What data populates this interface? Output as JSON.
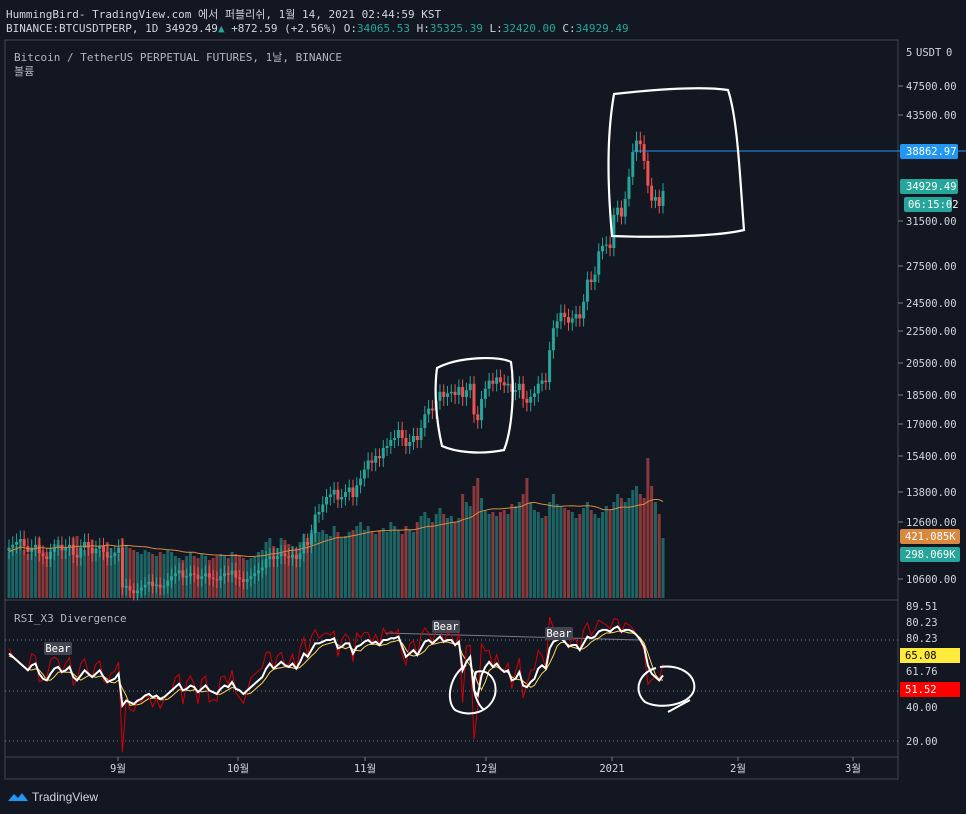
{
  "header": {
    "line1": "HummingBird- TradingView.com 에서 퍼블리쉬, 1월 14, 2021 02:44:59 KST",
    "symbol": "BINANCE:BTCUSDTPERP, 1D",
    "last": "34929.49",
    "arrow": "▲",
    "change": "+872.59 (+2.56%)",
    "o_label": "O:",
    "o": "34065.53",
    "h_label": "H:",
    "h": "35325.39",
    "l_label": "L:",
    "l": "32420.00",
    "c_label": "C:",
    "c": "34929.49"
  },
  "legend": {
    "title": "Bitcoin / TetherUS PERPETUAL FUTURES, 1날, BINANCE",
    "volume": "볼륨",
    "rsi": "RSI_X3 Divergence"
  },
  "price_axis": {
    "currency": "USDT",
    "currency_count": "5",
    "tail": "0",
    "ticks": [
      "47500.00",
      "43500.00",
      "31500.00",
      "27500.00",
      "24500.00",
      "22500.00",
      "20500.00",
      "18500.00",
      "17000.00",
      "15400.00",
      "13800.00",
      "12600.00",
      "10600.00"
    ],
    "tag_hline": "38862.97",
    "tag_last": "34929.49",
    "tag_timer": "06:15:02",
    "tag_vol_ma": "421.085K",
    "tag_vol": "298.069K"
  },
  "rsi_axis": {
    "ticks": [
      "89.51",
      "80.23",
      "80.23",
      "61.76",
      "40.00",
      "20.00"
    ],
    "tag_yellow": "65.08",
    "tag_red": "51.52"
  },
  "time_axis": {
    "labels": [
      "9월",
      "10월",
      "11월",
      "12월",
      "2021",
      "2월",
      "3월"
    ]
  },
  "rsi_labels": [
    "Bear",
    "Bear",
    "Bear"
  ],
  "footer": {
    "brand": "TradingView"
  },
  "colors": {
    "bg": "#131722",
    "up": "#26a69a",
    "down": "#ef5350",
    "hline": "#2196f3",
    "vol_ma": "#d9893f",
    "rsi": "#ffffff",
    "rsi_fast": "#d50000",
    "rsi_slow": "#ffd54f"
  },
  "chart_data": {
    "type": "candlestick",
    "interval": "1D",
    "symbol": "BINANCE:BTCUSDTPERP",
    "last_bar": {
      "open": 34065.53,
      "high": 35325.39,
      "low": 32420.0,
      "close": 34929.49,
      "change": 872.59,
      "change_pct": 2.56
    },
    "horizontal_line": 38862.97,
    "volume_last": "298.069K",
    "volume_ma": "421.085K",
    "close_series": [
      11700,
      11800,
      11900,
      12000,
      11750,
      11550,
      11700,
      11800,
      11500,
      11400,
      11300,
      11550,
      11700,
      11800,
      11600,
      11700,
      11800,
      11450,
      11350,
      11700,
      11900,
      11700,
      11500,
      11650,
      11750,
      11550,
      11350,
      11400,
      11500,
      11700,
      10300,
      10350,
      10200,
      10100,
      10200,
      10300,
      10400,
      10500,
      10350,
      10400,
      10300,
      10350,
      10550,
      10700,
      10800,
      10900,
      10650,
      10700,
      10800,
      10750,
      10600,
      10700,
      10800,
      10650,
      10600,
      10550,
      10700,
      10800,
      10750,
      10900,
      10650,
      10600,
      10500,
      10600,
      10700,
      10800,
      10900,
      11000,
      11300,
      11400,
      11300,
      11400,
      11500,
      11400,
      11350,
      11450,
      11300,
      11500,
      11900,
      11800,
      12200,
      12900,
      13000,
      13300,
      13600,
      13700,
      13900,
      13500,
      13600,
      13800,
      14000,
      13600,
      14100,
      14400,
      14800,
      15200,
      15100,
      15400,
      15300,
      15800,
      15900,
      16200,
      16300,
      16700,
      16300,
      15900,
      16100,
      16400,
      16200,
      16800,
      17500,
      17800,
      17700,
      18200,
      18700,
      18400,
      18600,
      18700,
      18500,
      19000,
      18400,
      18800,
      19200,
      17500,
      17200,
      18300,
      18900,
      19400,
      19200,
      19600,
      19300,
      19100,
      19200,
      18700,
      18800,
      19200,
      18300,
      18100,
      18400,
      18600,
      19200,
      19400,
      19300,
      21300,
      22700,
      23200,
      23800,
      23500,
      23100,
      23400,
      23700,
      23400,
      24600,
      26400,
      26200,
      26800,
      28800,
      29300,
      29400,
      29100,
      32200,
      33000,
      32000,
      34000,
      36500,
      39300,
      40600,
      40200,
      38300,
      35500,
      33800,
      34200,
      33200,
      34900
    ],
    "volume_series_k": [
      230,
      250,
      260,
      280,
      240,
      220,
      230,
      260,
      300,
      240,
      230,
      250,
      270,
      290,
      260,
      240,
      250,
      300,
      310,
      260,
      240,
      260,
      290,
      250,
      240,
      260,
      280,
      250,
      230,
      220,
      300,
      260,
      250,
      240,
      230,
      220,
      240,
      230,
      220,
      210,
      230,
      220,
      240,
      230,
      210,
      200,
      190,
      210,
      230,
      210,
      200,
      220,
      210,
      190,
      200,
      210,
      220,
      210,
      200,
      230,
      220,
      210,
      200,
      190,
      200,
      210,
      230,
      240,
      280,
      300,
      260,
      250,
      300,
      290,
      270,
      260,
      250,
      280,
      320,
      300,
      340,
      360,
      330,
      340,
      320,
      310,
      360,
      330,
      300,
      310,
      330,
      340,
      360,
      380,
      340,
      360,
      330,
      320,
      340,
      350,
      330,
      380,
      360,
      340,
      320,
      360,
      340,
      330,
      380,
      410,
      430,
      400,
      380,
      420,
      450,
      420,
      400,
      410,
      380,
      400,
      520,
      480,
      460,
      560,
      600,
      500,
      440,
      420,
      430,
      410,
      430,
      440,
      420,
      470,
      460,
      480,
      520,
      600,
      480,
      440,
      430,
      400,
      410,
      480,
      520,
      470,
      460,
      450,
      440,
      430,
      400,
      420,
      450,
      480,
      440,
      420,
      400,
      430,
      460,
      440,
      480,
      520,
      500,
      480,
      500,
      540,
      560,
      520,
      500,
      700,
      560,
      480,
      420,
      300
    ],
    "rsi_series": [
      72,
      70,
      68,
      66,
      64,
      62,
      65,
      66,
      60,
      57,
      56,
      60,
      63,
      64,
      61,
      62,
      64,
      58,
      56,
      59,
      62,
      60,
      58,
      60,
      62,
      58,
      55,
      56,
      57,
      60,
      41,
      44,
      43,
      42,
      44,
      45,
      47,
      48,
      46,
      47,
      45,
      46,
      48,
      50,
      52,
      54,
      50,
      51,
      53,
      52,
      49,
      51,
      53,
      50,
      49,
      48,
      51,
      53,
      52,
      55,
      51,
      50,
      48,
      50,
      52,
      54,
      56,
      58,
      63,
      66,
      63,
      65,
      67,
      65,
      64,
      66,
      63,
      67,
      72,
      70,
      74,
      78,
      78,
      79,
      80,
      80,
      81,
      75,
      76,
      78,
      78,
      72,
      76,
      77,
      79,
      80,
      78,
      79,
      77,
      80,
      80,
      81,
      81,
      82,
      76,
      70,
      72,
      74,
      71,
      75,
      79,
      80,
      78,
      80,
      82,
      79,
      80,
      80,
      77,
      79,
      62,
      67,
      70,
      50,
      47,
      59,
      64,
      67,
      64,
      66,
      63,
      61,
      62,
      56,
      57,
      61,
      53,
      52,
      55,
      57,
      63,
      65,
      63,
      75,
      79,
      80,
      81,
      79,
      76,
      77,
      77,
      74,
      78,
      82,
      81,
      82,
      85,
      86,
      86,
      85,
      87,
      88,
      85,
      86,
      86,
      85,
      83,
      80,
      76,
      65,
      60,
      58,
      56,
      59
    ],
    "rsi_levels": {
      "upper": 80,
      "mid": 50,
      "lower": 20
    },
    "rsi_last": {
      "rsi_yellow": 65.08,
      "rsi_red": 51.52,
      "value_61": 61.76
    }
  }
}
